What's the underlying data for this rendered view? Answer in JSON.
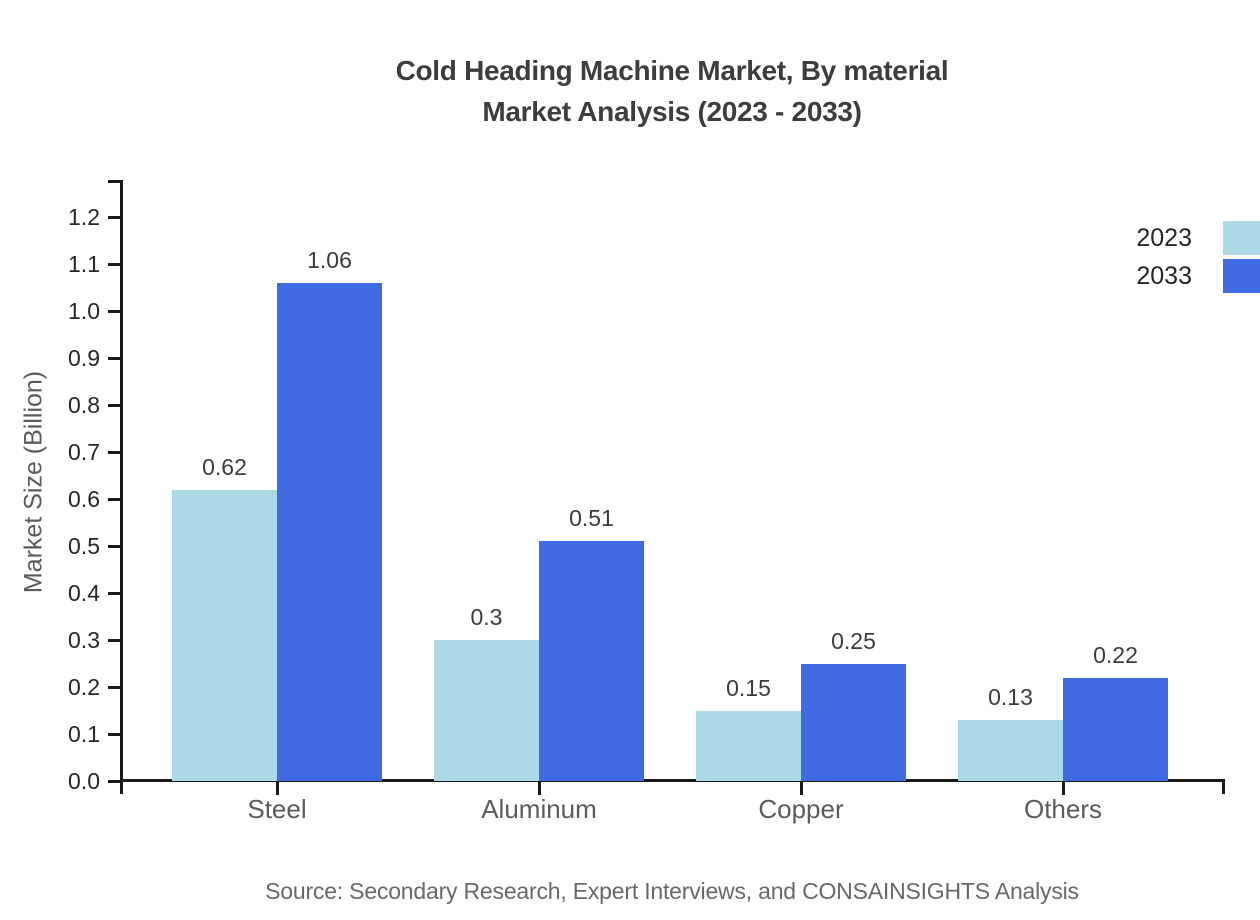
{
  "page": {
    "title_line1": "Cold Heading Machine Market, By material",
    "title_line2": "Market Analysis (2023 - 2033)",
    "source_note": "Source: Secondary Research, Expert Interviews, and CONSAINSIGHTS Analysis"
  },
  "chart_data": {
    "type": "bar",
    "title": "Cold Heading Machine Market, By material Market Analysis (2023 - 2033)",
    "categories": [
      "Steel",
      "Aluminum",
      "Copper",
      "Others"
    ],
    "series": [
      {
        "name": "2023",
        "color": "#ADD8E6",
        "values": [
          0.62,
          0.3,
          0.15,
          0.13
        ]
      },
      {
        "name": "2033",
        "color": "#4169E1",
        "values": [
          1.06,
          0.51,
          0.25,
          0.22
        ]
      }
    ],
    "xlabel": "",
    "ylabel": "Market Size (Billion)",
    "ylim": [
      0,
      1.25
    ],
    "yticks": [
      0.0,
      0.1,
      0.2,
      0.3,
      0.4,
      0.5,
      0.6,
      0.7,
      0.8,
      0.9,
      1.0,
      1.1,
      1.2
    ],
    "grid": false,
    "legend_position": "top-right",
    "bar_value_labels": true
  },
  "colors": {
    "axis": "#1a1a1a",
    "tick_label": "#262626",
    "category_label": "#595b5e",
    "title": "#3d3d3d",
    "value_label": "#3c3c3c",
    "source": "#66696b",
    "series_2023": "#ADD8E6",
    "series_2033": "#4169E1"
  }
}
